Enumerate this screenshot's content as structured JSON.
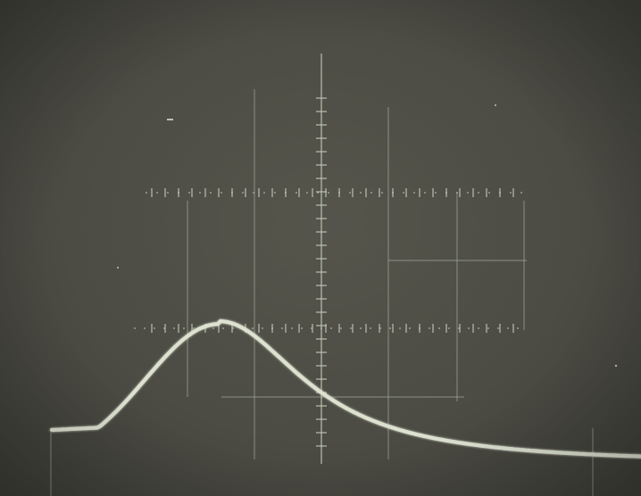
{
  "image": {
    "subject": "oscilloscope-trace",
    "colors": {
      "screen": "#4c4c44",
      "graticule": "#b8c0ae",
      "trace": "#d8ddcc",
      "baseline": "#cfd6c4"
    }
  }
}
